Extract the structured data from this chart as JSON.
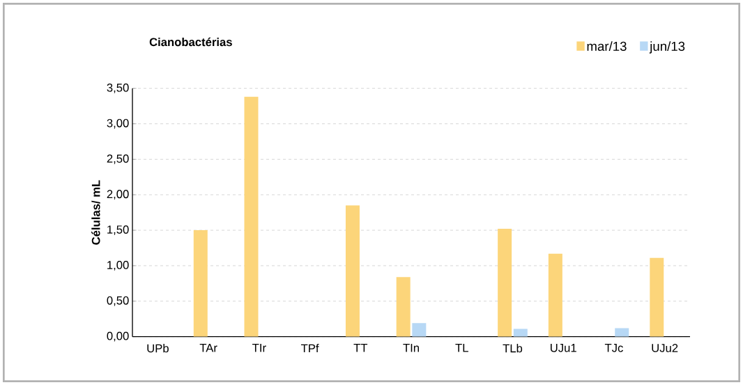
{
  "chart_data": {
    "type": "bar",
    "title": "Cianobactérias",
    "ylabel": "Células/ mL",
    "categories": [
      "UPb",
      "TAr",
      "TIr",
      "TPf",
      "TT",
      "TIn",
      "TL",
      "TLb",
      "UJu1",
      "TJc",
      "UJu2"
    ],
    "series": [
      {
        "name": "mar/13",
        "color": "#fcd57a",
        "values": [
          0,
          1.5,
          3.38,
          0,
          1.85,
          0.84,
          0,
          1.52,
          1.17,
          0,
          1.11
        ]
      },
      {
        "name": "jun/13",
        "color": "#b7d8f5",
        "values": [
          0,
          0,
          0,
          0,
          0,
          0.19,
          0,
          0.11,
          0,
          0.12,
          0
        ]
      }
    ],
    "ylim": [
      0,
      3.5
    ],
    "yticks": [
      {
        "value": 0,
        "label": "0,00"
      },
      {
        "value": 0.5,
        "label": "0,50"
      },
      {
        "value": 1,
        "label": "1,00"
      },
      {
        "value": 1.5,
        "label": "1,50"
      },
      {
        "value": 2,
        "label": "2,00"
      },
      {
        "value": 2.5,
        "label": "2,50"
      },
      {
        "value": 3,
        "label": "3,00"
      },
      {
        "value": 3.5,
        "label": "3,50"
      }
    ],
    "grid": "y",
    "legend": "top right"
  }
}
